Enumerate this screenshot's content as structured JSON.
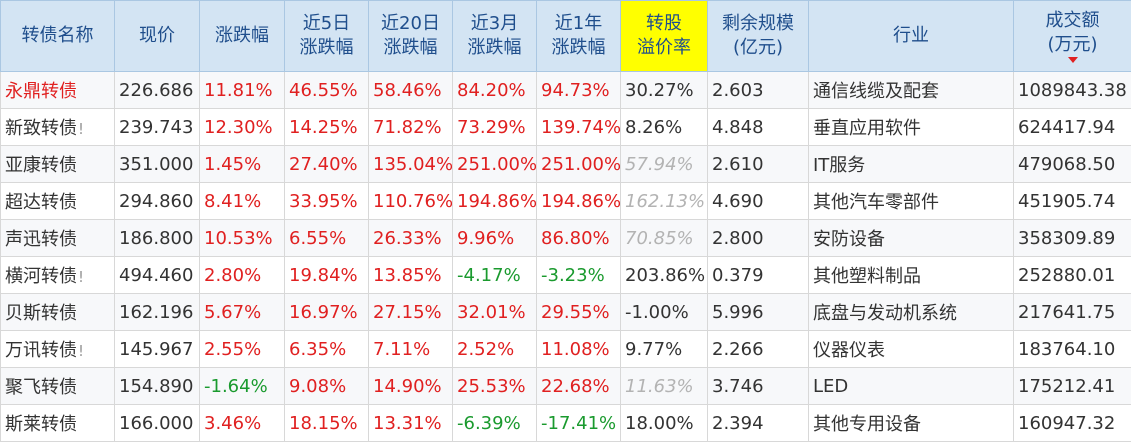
{
  "headers": [
    [
      "转债名称"
    ],
    [
      "现价"
    ],
    [
      "涨跌幅"
    ],
    [
      "近5日",
      "涨跌幅"
    ],
    [
      "近20日",
      "涨跌幅"
    ],
    [
      "近3月",
      "涨跌幅"
    ],
    [
      "近1年",
      "涨跌幅"
    ],
    [
      "转股",
      "溢价率"
    ],
    [
      "剩余规模",
      "(亿元)"
    ],
    [
      "行业"
    ],
    [
      "成交额",
      "(万元)"
    ]
  ],
  "sort_column_index": 10,
  "sort_direction": "desc",
  "colors": {
    "header_bg": "#d3e4f3",
    "highlight": "#ffff00",
    "up": "#e02020",
    "down": "#1a9a2e",
    "dim": "#b3b3b3"
  },
  "rows": [
    {
      "name": "永鼎转债",
      "name_highlight": true,
      "mark": "",
      "price": "226.686",
      "chg": "11.81%",
      "chg5": "46.55%",
      "chg20": "58.46%",
      "chg3m": "84.20%",
      "chg1y": "94.73%",
      "premium": "30.27%",
      "premium_dim": false,
      "scale": "2.603",
      "industry": "通信线缆及配套",
      "volume": "1089843.38"
    },
    {
      "name": "新致转债",
      "name_highlight": false,
      "mark": "!",
      "price": "239.743",
      "chg": "12.30%",
      "chg5": "14.25%",
      "chg20": "71.82%",
      "chg3m": "73.29%",
      "chg1y": "139.74%",
      "premium": "8.26%",
      "premium_dim": false,
      "scale": "4.848",
      "industry": "垂直应用软件",
      "volume": "624417.94"
    },
    {
      "name": "亚康转债",
      "name_highlight": false,
      "mark": "",
      "price": "351.000",
      "chg": "1.45%",
      "chg5": "27.40%",
      "chg20": "135.04%",
      "chg3m": "251.00%",
      "chg1y": "251.00%",
      "premium": "57.94%",
      "premium_dim": true,
      "scale": "2.610",
      "industry": "IT服务",
      "volume": "479068.50"
    },
    {
      "name": "超达转债",
      "name_highlight": false,
      "mark": "",
      "price": "294.860",
      "chg": "8.41%",
      "chg5": "33.95%",
      "chg20": "110.76%",
      "chg3m": "194.86%",
      "chg1y": "194.86%",
      "premium": "162.13%",
      "premium_dim": true,
      "scale": "4.690",
      "industry": "其他汽车零部件",
      "volume": "451905.74"
    },
    {
      "name": "声迅转债",
      "name_highlight": false,
      "mark": "",
      "price": "186.800",
      "chg": "10.53%",
      "chg5": "6.55%",
      "chg20": "26.33%",
      "chg3m": "9.96%",
      "chg1y": "86.80%",
      "premium": "70.85%",
      "premium_dim": true,
      "scale": "2.800",
      "industry": "安防设备",
      "volume": "358309.89"
    },
    {
      "name": "横河转债",
      "name_highlight": false,
      "mark": "!",
      "price": "494.460",
      "chg": "2.80%",
      "chg5": "19.84%",
      "chg20": "13.85%",
      "chg3m": "-4.17%",
      "chg1y": "-3.23%",
      "premium": "203.86%",
      "premium_dim": false,
      "scale": "0.379",
      "industry": "其他塑料制品",
      "volume": "252880.01"
    },
    {
      "name": "贝斯转债",
      "name_highlight": false,
      "mark": "",
      "price": "162.196",
      "chg": "5.67%",
      "chg5": "16.97%",
      "chg20": "27.15%",
      "chg3m": "32.01%",
      "chg1y": "29.55%",
      "premium": "-1.00%",
      "premium_dim": false,
      "scale": "5.996",
      "industry": "底盘与发动机系统",
      "volume": "217641.75"
    },
    {
      "name": "万讯转债",
      "name_highlight": false,
      "mark": "!",
      "price": "145.967",
      "chg": "2.55%",
      "chg5": "6.35%",
      "chg20": "7.11%",
      "chg3m": "2.52%",
      "chg1y": "11.08%",
      "premium": "9.77%",
      "premium_dim": false,
      "scale": "2.266",
      "industry": "仪器仪表",
      "volume": "183764.10"
    },
    {
      "name": "聚飞转债",
      "name_highlight": false,
      "mark": "",
      "price": "154.890",
      "chg": "-1.64%",
      "chg5": "9.08%",
      "chg20": "14.90%",
      "chg3m": "25.53%",
      "chg1y": "22.68%",
      "premium": "11.63%",
      "premium_dim": true,
      "scale": "3.746",
      "industry": "LED",
      "volume": "175212.41"
    },
    {
      "name": "斯莱转债",
      "name_highlight": false,
      "mark": "",
      "price": "166.000",
      "chg": "3.46%",
      "chg5": "18.15%",
      "chg20": "13.31%",
      "chg3m": "-6.39%",
      "chg1y": "-17.41%",
      "premium": "18.00%",
      "premium_dim": false,
      "scale": "2.394",
      "industry": "其他专用设备",
      "volume": "160947.32"
    }
  ]
}
